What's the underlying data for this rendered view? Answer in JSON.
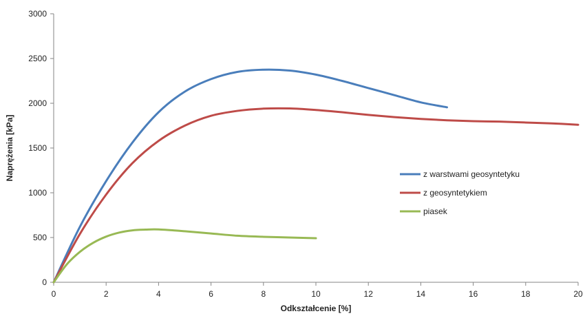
{
  "chart_data": {
    "type": "line",
    "title": "",
    "xlabel": "Odkształcenie [%]",
    "ylabel": "Naprężenia [kPa]",
    "xlim": [
      0,
      20
    ],
    "ylim": [
      0,
      3000
    ],
    "xticks": [
      0,
      2,
      4,
      6,
      8,
      10,
      12,
      14,
      16,
      18,
      20
    ],
    "yticks": [
      0,
      500,
      1000,
      1500,
      2000,
      2500,
      3000
    ],
    "grid": false,
    "legend_position": "right",
    "series": [
      {
        "name": "z warstwami  geosyntetyku",
        "color": "#4A7EBB",
        "x": [
          0,
          1,
          2,
          3,
          4,
          5,
          6,
          7,
          8,
          9,
          10,
          11,
          12,
          13,
          14,
          15
        ],
        "y": [
          0,
          620,
          1130,
          1560,
          1900,
          2130,
          2270,
          2350,
          2375,
          2365,
          2320,
          2250,
          2170,
          2090,
          2010,
          1955
        ]
      },
      {
        "name": "z geosyntetykiem",
        "color": "#BE4B48",
        "x": [
          0,
          1,
          2,
          3,
          4,
          5,
          6,
          7,
          8,
          9,
          10,
          11,
          12,
          13,
          14,
          15,
          16,
          17,
          18,
          19,
          20
        ],
        "y": [
          0,
          540,
          980,
          1330,
          1580,
          1750,
          1860,
          1915,
          1940,
          1942,
          1925,
          1900,
          1870,
          1845,
          1825,
          1810,
          1800,
          1795,
          1785,
          1775,
          1760
        ]
      },
      {
        "name": "piasek",
        "color": "#98B954",
        "x": [
          0,
          0.5,
          1,
          1.5,
          2,
          2.5,
          3,
          3.5,
          4,
          5,
          6,
          7,
          8,
          9,
          10
        ],
        "y": [
          0,
          200,
          340,
          440,
          510,
          555,
          580,
          588,
          590,
          570,
          545,
          520,
          508,
          500,
          492
        ]
      }
    ]
  }
}
